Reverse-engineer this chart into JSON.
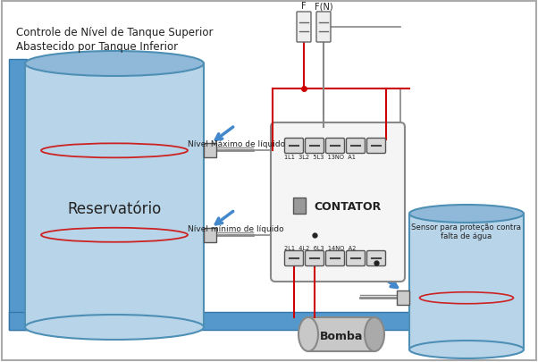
{
  "title_line1": "Controle de Nível de Tanque Superior",
  "title_line2": "Abastecido por Tanque Inferior",
  "label_reservatorio": "Reservatório",
  "label_nivel_max": "Nível Máximo de líquido",
  "label_nivel_min": "Nível mínimo de líquido",
  "label_bomba": "Bomba",
  "label_contator": "CONTATOR",
  "label_sensor": "Sensor para proteção contra\nfalta de água",
  "label_F": "F",
  "label_FN": "F(N)",
  "bg_color": "#ffffff",
  "border_color": "#aaaaaa",
  "tank_fill": "#b8d4e8",
  "tank_fill_dark": "#a0c4e0",
  "tank_border": "#4d8fb5",
  "pipe_color": "#5599cc",
  "pipe_border": "#3377aa",
  "red_wire": "#cc0000",
  "gray_wire": "#888888",
  "dark_wire": "#333333",
  "contactor_bg": "#f5f5f5",
  "contactor_border": "#888888",
  "terminal_fill": "#d8d8d8",
  "terminal_border": "#555555",
  "coil_fill": "#999999",
  "text_color": "#222222",
  "ellipse_color": "#cc2222",
  "arrow_color": "#4488cc",
  "fuse_fill": "#eeeeee",
  "fuse_border": "#666666",
  "pump_fill": "#c8c8c8",
  "pump_border": "#888888"
}
